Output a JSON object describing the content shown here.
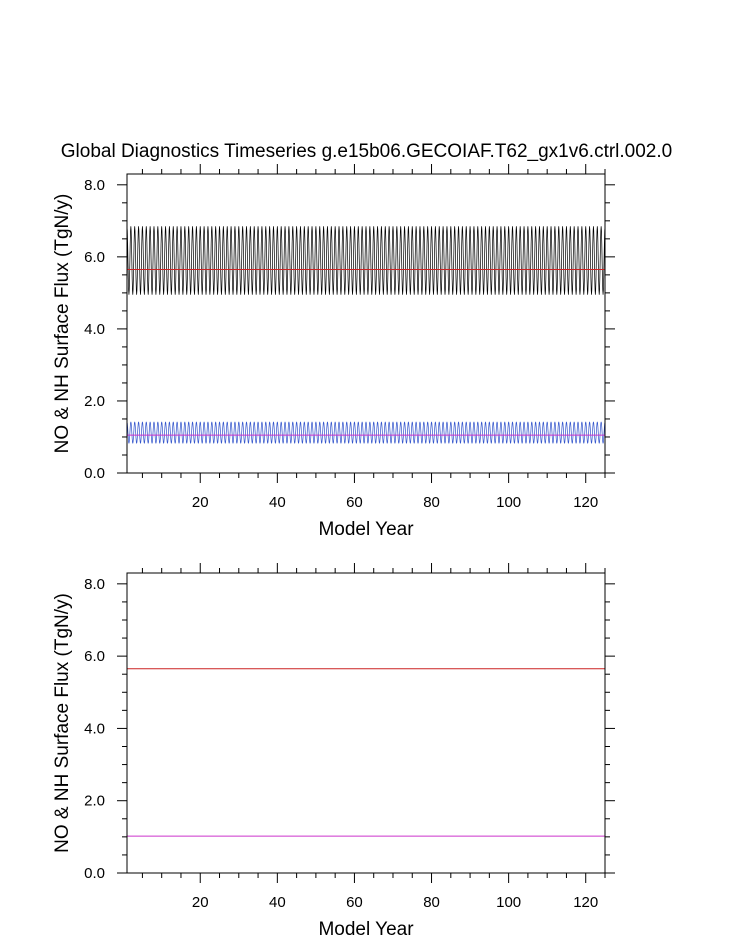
{
  "title": "Global Diagnostics Timeseries g.e15b06.GECOIAF.T62_gx1v6.ctrl.002.0",
  "chart_data": [
    {
      "type": "line",
      "xlabel": "Model Year",
      "ylabel": "NO & NH Surface Flux (TgN/y)",
      "xlim": [
        1,
        125
      ],
      "ylim": [
        0,
        8.3
      ],
      "xticks": [
        20,
        40,
        60,
        80,
        100,
        120
      ],
      "yticks": [
        0.0,
        2.0,
        4.0,
        6.0,
        8.0
      ],
      "ytick_labels": [
        "0.0",
        "2.0",
        "4.0",
        "6.0",
        "8.0"
      ],
      "grid": false,
      "series": [
        {
          "kind": "seasonal",
          "color": "#000000",
          "mean": 5.65,
          "min": 4.95,
          "max": 6.85,
          "cycles_per_year": 1
        },
        {
          "kind": "seasonal",
          "color": "#3355cc",
          "mean": 1.05,
          "min": 0.82,
          "max": 1.42,
          "cycles_per_year": 1
        },
        {
          "kind": "constant",
          "color": "#cc2222",
          "value": 5.65
        },
        {
          "kind": "constant",
          "color": "#cc33cc",
          "value": 1.05
        }
      ]
    },
    {
      "type": "line",
      "xlabel": "Model Year",
      "ylabel": "NO & NH Surface Flux (TgN/y)",
      "xlim": [
        1,
        125
      ],
      "ylim": [
        0,
        8.3
      ],
      "xticks": [
        20,
        40,
        60,
        80,
        100,
        120
      ],
      "yticks": [
        0.0,
        2.0,
        4.0,
        6.0,
        8.0
      ],
      "ytick_labels": [
        "0.0",
        "2.0",
        "4.0",
        "6.0",
        "8.0"
      ],
      "grid": false,
      "series": [
        {
          "kind": "constant",
          "color": "#cc2222",
          "value": 5.65
        },
        {
          "kind": "constant",
          "color": "#cc33cc",
          "value": 1.02
        }
      ]
    }
  ]
}
